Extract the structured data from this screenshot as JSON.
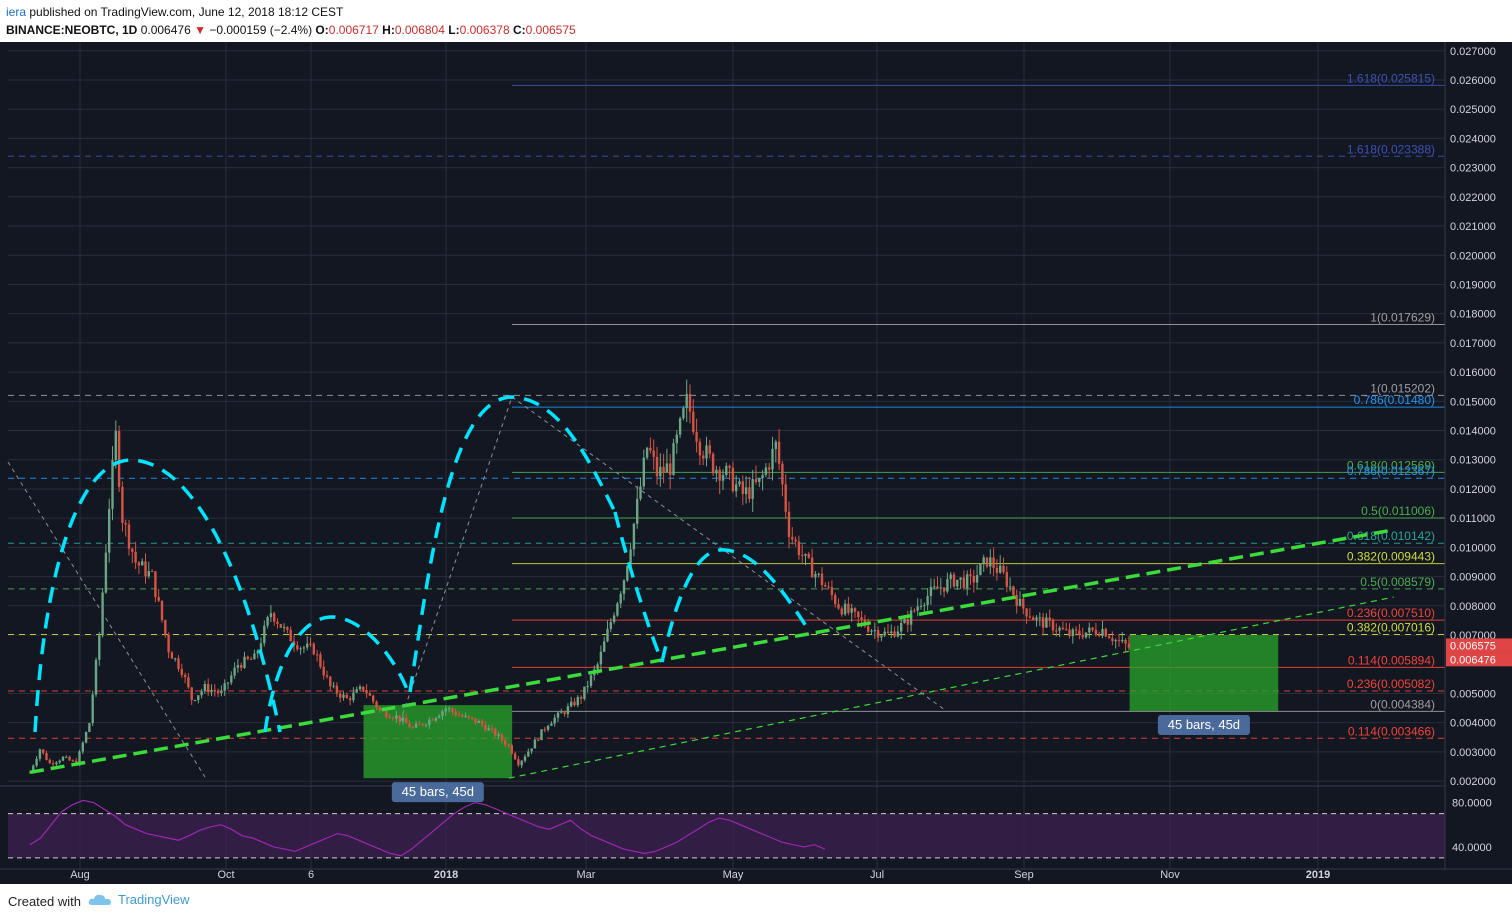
{
  "header": {
    "author": "iera",
    "published_text": "published on TradingView.com, June 12, 2018 18:12 CEST",
    "symbol": "BINANCE:NEOBTC, 1D",
    "last": "0.006476",
    "change": "−0.000159 (−2.4%)",
    "open_label": "O:",
    "open": "0.006717",
    "high_label": "H:",
    "high": "0.006804",
    "low_label": "L:",
    "low": "0.006378",
    "close_label": "C:",
    "close": "0.006575"
  },
  "footer": {
    "created_with": "Created with",
    "brand": "TradingView"
  },
  "colors": {
    "background": "#131722",
    "grid": "#2a2e39",
    "bull": "#6ba583",
    "bear": "#d75442",
    "cyan": "#00e5ff",
    "green_dash": "#3adb3a",
    "rsi": "#9c27b0",
    "measure_box": "#2aa52a"
  },
  "chart_data": {
    "type": "candlestick",
    "symbol": "BINANCE:NEOBTC",
    "interval": "1D",
    "ylim": [
      0.0019,
      0.0273
    ],
    "y_ticks": [
      "0.027000",
      "0.026000",
      "0.025000",
      "0.024000",
      "0.023000",
      "0.022000",
      "0.021000",
      "0.020000",
      "0.019000",
      "0.018000",
      "0.017000",
      "0.016000",
      "0.015000",
      "0.014000",
      "0.013000",
      "0.012000",
      "0.011000",
      "0.010000",
      "0.009000",
      "0.008000",
      "0.007000",
      "0.005000",
      "0.004000",
      "0.003000",
      "0.002000"
    ],
    "x_ticks": [
      "Aug",
      "Oct",
      "6",
      "2018",
      "Mar",
      "May",
      "Jul",
      "Sep",
      "Nov",
      "2019"
    ],
    "price_labels": [
      {
        "text": "0.006575",
        "value": 0.006575,
        "color": "#e04545"
      },
      {
        "text": "0.006476",
        "value": 0.006476,
        "color": "#e04545"
      }
    ],
    "price_path": [
      [
        "2017-07-14",
        0.0023
      ],
      [
        "2017-07-17",
        0.0031
      ],
      [
        "2017-07-20",
        0.0026
      ],
      [
        "2017-07-24",
        0.0028
      ],
      [
        "2017-07-28",
        0.0026
      ],
      [
        "2017-08-01",
        0.004
      ],
      [
        "2017-08-04",
        0.007
      ],
      [
        "2017-08-07",
        0.0115
      ],
      [
        "2017-08-09",
        0.0138
      ],
      [
        "2017-08-11",
        0.011
      ],
      [
        "2017-08-15",
        0.0095
      ],
      [
        "2017-08-20",
        0.009
      ],
      [
        "2017-08-25",
        0.0065
      ],
      [
        "2017-08-29",
        0.0058
      ],
      [
        "2017-09-01",
        0.0048
      ],
      [
        "2017-09-05",
        0.0052
      ],
      [
        "2017-09-10",
        0.005
      ],
      [
        "2017-09-15",
        0.006
      ],
      [
        "2017-09-20",
        0.0062
      ],
      [
        "2017-09-25",
        0.0078
      ],
      [
        "2017-09-30",
        0.007
      ],
      [
        "2017-10-04",
        0.0066
      ],
      [
        "2017-10-08",
        0.0065
      ],
      [
        "2017-10-13",
        0.0052
      ],
      [
        "2017-10-18",
        0.0048
      ],
      [
        "2017-10-23",
        0.0052
      ],
      [
        "2017-10-28",
        0.0044
      ],
      [
        "2017-11-02",
        0.0042
      ],
      [
        "2017-11-07",
        0.0038
      ],
      [
        "2017-11-12",
        0.0041
      ],
      [
        "2017-11-17",
        0.0045
      ],
      [
        "2017-11-22",
        0.0042
      ],
      [
        "2017-11-27",
        0.004
      ],
      [
        "2017-12-02",
        0.0036
      ],
      [
        "2017-12-06",
        0.0032
      ],
      [
        "2017-12-09",
        0.0026
      ],
      [
        "2017-12-13",
        0.0032
      ],
      [
        "2017-12-18",
        0.004
      ],
      [
        "2017-12-23",
        0.0044
      ],
      [
        "2017-12-28",
        0.0049
      ],
      [
        "2018-01-02",
        0.006
      ],
      [
        "2018-01-06",
        0.0075
      ],
      [
        "2018-01-10",
        0.009
      ],
      [
        "2018-01-14",
        0.0115
      ],
      [
        "2018-01-17",
        0.0135
      ],
      [
        "2018-01-20",
        0.0125
      ],
      [
        "2018-01-24",
        0.0128
      ],
      [
        "2018-01-29",
        0.015
      ],
      [
        "2018-02-02",
        0.0135
      ],
      [
        "2018-02-06",
        0.0128
      ],
      [
        "2018-02-10",
        0.0125
      ],
      [
        "2018-02-15",
        0.0118
      ],
      [
        "2018-02-20",
        0.0122
      ],
      [
        "2018-02-25",
        0.0135
      ],
      [
        "2018-03-01",
        0.0105
      ],
      [
        "2018-03-06",
        0.0095
      ],
      [
        "2018-03-11",
        0.0088
      ],
      [
        "2018-03-16",
        0.008
      ],
      [
        "2018-03-21",
        0.0076
      ],
      [
        "2018-03-26",
        0.0072
      ],
      [
        "2018-03-31",
        0.007
      ],
      [
        "2018-04-05",
        0.0074
      ],
      [
        "2018-04-10",
        0.0082
      ],
      [
        "2018-04-15",
        0.0086
      ],
      [
        "2018-04-20",
        0.0089
      ],
      [
        "2018-04-25",
        0.0088
      ],
      [
        "2018-04-30",
        0.0096
      ],
      [
        "2018-05-05",
        0.009
      ],
      [
        "2018-05-10",
        0.008
      ],
      [
        "2018-05-15",
        0.0075
      ],
      [
        "2018-05-20",
        0.0073
      ],
      [
        "2018-05-25",
        0.007
      ],
      [
        "2018-05-30",
        0.0071
      ],
      [
        "2018-06-04",
        0.0072
      ],
      [
        "2018-06-08",
        0.0068
      ],
      [
        "2018-06-12",
        0.006575
      ]
    ],
    "fib_levels": [
      {
        "label": "1.618(0.025815)",
        "value": 0.025815,
        "style": "solid",
        "color": "#3f51b5"
      },
      {
        "label": "1.618(0.023388)",
        "value": 0.023388,
        "style": "dashed",
        "color": "#3f51b5"
      },
      {
        "label": "1(0.017629)",
        "value": 0.017629,
        "style": "solid",
        "color": "#9e9e9e"
      },
      {
        "label": "0.786(0.01480)",
        "value": 0.0148,
        "style": "solid",
        "color": "#2196f3"
      },
      {
        "label": "1(0.015202)",
        "value": 0.015202,
        "style": "dashed",
        "color": "#9e9e9e"
      },
      {
        "label": "0.618(0.012569)",
        "value": 0.012569,
        "style": "solid",
        "color": "#4caf50"
      },
      {
        "label": "0.786(0.012367)",
        "value": 0.012367,
        "style": "dashed",
        "color": "#2196f3"
      },
      {
        "label": "0.5(0.011006)",
        "value": 0.011006,
        "style": "solid",
        "color": "#4caf50"
      },
      {
        "label": "0.618(0.010142)",
        "value": 0.010142,
        "style": "dashed",
        "color": "#26a69a"
      },
      {
        "label": "0.382(0.009443)",
        "value": 0.009443,
        "style": "solid",
        "color": "#cddc39"
      },
      {
        "label": "0.5(0.008579)",
        "value": 0.008579,
        "style": "dashed",
        "color": "#4caf50"
      },
      {
        "label": "0.236(0.007510)",
        "value": 0.00751,
        "style": "solid",
        "color": "#f44336"
      },
      {
        "label": "0.382(0.007016)",
        "value": 0.007016,
        "style": "dashed",
        "color": "#cddc39"
      },
      {
        "label": "0.114(0.005894)",
        "value": 0.005894,
        "style": "solid",
        "color": "#f44336"
      },
      {
        "label": "0.236(0.005082)",
        "value": 0.005082,
        "style": "dashed",
        "color": "#f44336"
      },
      {
        "label": "0(0.004384)",
        "value": 0.004384,
        "style": "solid",
        "color": "#9e9e9e"
      },
      {
        "label": "0.114(0.003466)",
        "value": 0.003466,
        "style": "dashed",
        "color": "#f44336"
      }
    ],
    "measure_boxes": [
      {
        "label": "45 bars, 45d",
        "x_start": "2017-10-23",
        "x_end": "2017-12-07",
        "y_low": 0.0021,
        "y_high": 0.0046
      },
      {
        "label": "45 bars, 45d",
        "x_start": "2018-06-12",
        "x_end": "2018-07-27",
        "y_low": 0.0044,
        "y_high": 0.007
      }
    ],
    "trendlines": [
      {
        "from": [
          "2017-07-14",
          0.0023
        ],
        "to": [
          "2018-08-31",
          0.0106
        ],
        "style": "bold-dashed",
        "color": "#3adb3a"
      },
      {
        "from": [
          "2017-12-06",
          0.0021
        ],
        "to": [
          "2018-08-31",
          0.0083
        ],
        "style": "thin-dashed",
        "color": "#3adb3a"
      }
    ],
    "rsi": {
      "y_ticks": [
        "80.0000",
        "40.0000"
      ],
      "bands": [
        70,
        30
      ],
      "values": [
        42,
        48,
        60,
        72,
        78,
        82,
        80,
        74,
        68,
        60,
        56,
        52,
        50,
        48,
        46,
        50,
        55,
        58,
        60,
        56,
        50,
        48,
        44,
        40,
        38,
        36,
        40,
        44,
        48,
        52,
        50,
        46,
        42,
        38,
        34,
        32,
        38,
        46,
        54,
        62,
        70,
        76,
        80,
        78,
        74,
        70,
        66,
        62,
        58,
        56,
        60,
        64,
        56,
        50,
        46,
        42,
        38,
        36,
        34,
        36,
        40,
        44,
        50,
        56,
        62,
        66,
        64,
        60,
        56,
        52,
        48,
        44,
        42,
        40,
        42,
        38
      ]
    }
  }
}
